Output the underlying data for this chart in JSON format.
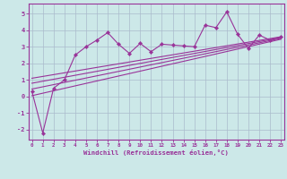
{
  "xlabel": "Windchill (Refroidissement éolien,°C)",
  "background_color": "#cce8e8",
  "line_color": "#993399",
  "grid_color": "#aabbcc",
  "scatter_x": [
    0,
    1,
    2,
    3,
    4,
    5,
    6,
    7,
    8,
    9,
    10,
    11,
    12,
    13,
    14,
    15,
    16,
    17,
    18,
    19,
    20,
    21,
    22,
    23
  ],
  "scatter_y": [
    0.3,
    -2.2,
    0.5,
    1.0,
    2.5,
    3.0,
    3.4,
    3.85,
    3.15,
    2.6,
    3.2,
    2.7,
    3.15,
    3.1,
    3.05,
    3.0,
    4.3,
    4.15,
    5.1,
    3.75,
    2.9,
    3.7,
    3.4,
    3.6
  ],
  "reg_lines": [
    {
      "x0": 0,
      "y0": 0.05,
      "x1": 23,
      "y1": 3.45
    },
    {
      "x0": 0,
      "y0": 0.45,
      "x1": 23,
      "y1": 3.5
    },
    {
      "x0": 0,
      "y0": 0.8,
      "x1": 23,
      "y1": 3.55
    },
    {
      "x0": 0,
      "y0": 1.1,
      "x1": 23,
      "y1": 3.6
    }
  ],
  "xlim": [
    -0.3,
    23.3
  ],
  "ylim": [
    -2.6,
    5.6
  ],
  "yticks": [
    -2,
    -1,
    0,
    1,
    2,
    3,
    4,
    5
  ],
  "xticks": [
    0,
    1,
    2,
    3,
    4,
    5,
    6,
    7,
    8,
    9,
    10,
    11,
    12,
    13,
    14,
    15,
    16,
    17,
    18,
    19,
    20,
    21,
    22,
    23
  ]
}
